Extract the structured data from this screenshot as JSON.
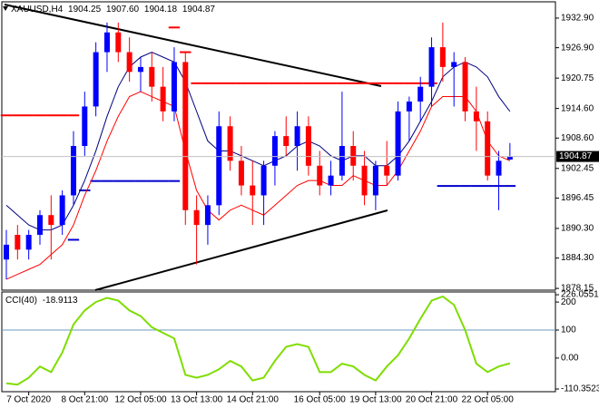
{
  "chart_data": [
    {
      "type": "candlestick",
      "symbol": "XAUUSD,H4",
      "header_values": [
        1904.25,
        1907.6,
        1904.18,
        1904.87
      ],
      "header_labels": [
        "1904.25",
        "1907.60",
        "1904.18",
        "1904.87"
      ],
      "categories": [
        null,
        null,
        "7 Oct 2020",
        null,
        null,
        null,
        null,
        "8 Oct 21:00",
        null,
        null,
        null,
        null,
        "12 Oct 05:00",
        null,
        null,
        null,
        null,
        "13 Oct 13:00",
        null,
        null,
        null,
        null,
        "14 Oct 21:00",
        null,
        null,
        null,
        null,
        null,
        "16 Oct 05:00",
        null,
        null,
        null,
        null,
        "19 Oct 13:00",
        null,
        null,
        null,
        null,
        "20 Oct 21:00",
        null,
        null,
        null,
        null,
        "22 Oct 05:00",
        null,
        null
      ],
      "open": [
        1884,
        1889,
        1886,
        1889,
        1893,
        1891,
        1897,
        1907,
        1915,
        1926,
        1930,
        1926,
        1922,
        1923,
        1919,
        1914,
        1924,
        1894,
        1891,
        1895,
        1911,
        1904,
        1899,
        1897,
        1903,
        1909,
        1907,
        1911,
        1903,
        1899,
        1901,
        1907,
        1903,
        1897,
        1903,
        1901,
        1914,
        1916,
        1919,
        1927,
        1923,
        1924,
        1914,
        1912,
        1901,
        1904.25
      ],
      "high": [
        1890,
        1891,
        1890,
        1894,
        1897,
        1898,
        1910,
        1918,
        1928,
        1932,
        1932,
        1929,
        1925,
        1926,
        1923,
        1927,
        1926,
        1897,
        1897,
        1914,
        1913,
        1907,
        1904,
        1904,
        1910,
        1913,
        1914,
        1913,
        1906,
        1904,
        1918,
        1910,
        1906,
        1904,
        1908,
        1916,
        1917,
        1921,
        1929,
        1932,
        1926,
        1925,
        1919,
        1914,
        1906,
        1907.6
      ],
      "low": [
        1880,
        1884,
        1884,
        1887,
        1884,
        1889,
        1895,
        1905,
        1913,
        1922,
        1924,
        1920,
        1918,
        1916,
        1912,
        1912,
        1891,
        1883,
        1887,
        1893,
        1902,
        1897,
        1891,
        1891,
        1899,
        1905,
        1902,
        1901,
        1897,
        1897,
        1900,
        1900,
        1895,
        1894,
        1899,
        1900,
        1908,
        1912,
        1915,
        1920,
        1915,
        1912,
        1906,
        1900,
        1894,
        1904.18
      ],
      "close": [
        1887,
        1886,
        1889,
        1893,
        1891,
        1897,
        1907,
        1915,
        1926,
        1930,
        1926,
        1922,
        1923,
        1919,
        1914,
        1924,
        1894,
        1891,
        1895,
        1911,
        1904,
        1899,
        1897,
        1903,
        1909,
        1907,
        1911,
        1903,
        1899,
        1901,
        1907,
        1903,
        1897,
        1903,
        1901,
        1914,
        1916,
        1919,
        1927,
        1923,
        1924,
        1914,
        1912,
        1901,
        1904,
        1904.87
      ],
      "up_color": "#0000ff",
      "down_color": "#ff0000",
      "series": [
        {
          "color": "#00007f",
          "values": [
            1895,
            1893,
            1891,
            1890,
            1890,
            1891,
            1895,
            1900,
            1906,
            1913,
            1919,
            1923,
            1925,
            1926,
            1925,
            1924,
            1920,
            1914,
            1908,
            1906,
            1906,
            1905,
            1904,
            1903,
            1904,
            1905,
            1907,
            1908,
            1907,
            1905,
            1904,
            1905,
            1905,
            1903,
            1903,
            1905,
            1908,
            1912,
            1916,
            1921,
            1923,
            1924,
            1923,
            1921,
            1917,
            1914
          ]
        },
        {
          "color": "#ff0000",
          "values": [
            1880,
            1881,
            1882,
            1883,
            1885,
            1887,
            1891,
            1897,
            1902,
            1908,
            1913,
            1917,
            1918,
            1917,
            1916,
            1915,
            1906,
            1898,
            1894,
            1892,
            1894,
            1895,
            1894,
            1893,
            1895,
            1897,
            1899,
            1900,
            1900,
            1899,
            1899,
            1901,
            1900,
            1899,
            1899,
            1902,
            1906,
            1910,
            1915,
            1917,
            1917,
            1917,
            1914,
            1908,
            1905,
            1904
          ]
        }
      ],
      "levels": [
        {
          "color": "#ff0000",
          "values": [
            1913.2,
            1913.2,
            1913.2,
            1913.2,
            1913.2,
            1913.2,
            1913.2,
            null,
            null,
            null,
            null,
            null,
            null,
            null,
            null,
            1931,
            1926,
            1919.7,
            1919.7,
            1919.7,
            1919.7,
            1919.7,
            1919.7,
            1919.7,
            1919.7,
            1919.7,
            1919.7,
            1919.7,
            1919.7,
            1919.7,
            1919.7,
            1919.7,
            1919.7,
            1919.7,
            1919.7,
            1919.7,
            1919.7,
            1919.7,
            1919.7,
            null,
            null,
            null,
            null,
            null,
            null,
            null
          ]
        },
        {
          "color": "#0000cc",
          "values": [
            null,
            null,
            null,
            null,
            null,
            null,
            1888,
            1898,
            1899.9,
            1899.9,
            1899.9,
            1899.9,
            1899.9,
            1899.9,
            1899.9,
            1899.9,
            null,
            null,
            null,
            null,
            null,
            null,
            null,
            null,
            null,
            null,
            null,
            null,
            null,
            null,
            null,
            null,
            null,
            null,
            null,
            null,
            null,
            null,
            null,
            1898.9,
            1898.9,
            1898.9,
            1898.9,
            1898.9,
            1898.9,
            1898.9
          ]
        }
      ],
      "ylim": [
        1877.8,
        1936.2
      ],
      "yticks": [
        {
          "value": 1932.9,
          "label": "1932.90"
        },
        {
          "value": 1926.9,
          "label": "1926.90"
        },
        1920.75,
        {
          "value": 1914.6,
          "label": "1914.60"
        },
        {
          "value": 1908.6,
          "label": "1908.60"
        },
        1902.45,
        1896.45,
        {
          "value": 1890.3,
          "label": "1890.30"
        },
        {
          "value": 1884.3,
          "label": "1884.30"
        },
        1878.15
      ],
      "grid": false
    },
    {
      "type": "line",
      "title": "CCI(40)",
      "series": [
        {
          "color": "#7fdd00",
          "values": [
            -90,
            -95,
            -70,
            -30,
            -50,
            20,
            120,
            170,
            200,
            215,
            205,
            170,
            150,
            110,
            90,
            70,
            -60,
            -70,
            -60,
            -40,
            -10,
            -30,
            -80,
            -70,
            -10,
            40,
            50,
            40,
            -50,
            -50,
            -20,
            -30,
            -60,
            -80,
            -30,
            10,
            70,
            140,
            205,
            220,
            190,
            100,
            -20,
            -50,
            -30,
            -18.9113
          ]
        }
      ],
      "level": 100,
      "level_color": "#6b9bc3",
      "ylim": [
        -120,
        236
      ],
      "yticks": [
        226.0551,
        200,
        100,
        {
          "value": 0,
          "label": "0.00"
        },
        -110.3523
      ]
    }
  ]
}
